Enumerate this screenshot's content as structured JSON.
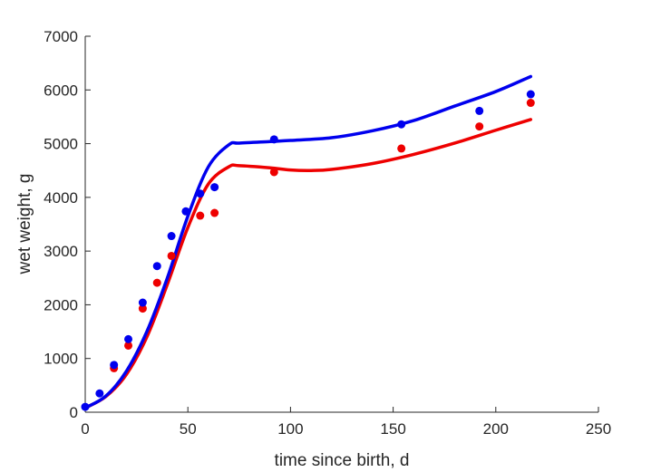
{
  "chart_data": {
    "type": "scatter",
    "title": "",
    "xlabel": "time since birth, d",
    "ylabel": "wet weight, g",
    "xlim": [
      0,
      250
    ],
    "ylim": [
      0,
      7000
    ],
    "xticks": [
      0,
      50,
      100,
      150,
      200,
      250
    ],
    "yticks": [
      0,
      1000,
      2000,
      3000,
      4000,
      5000,
      6000,
      7000
    ],
    "grid": false,
    "legend": "none",
    "series": [
      {
        "color": "#0000ee",
        "points_x": [
          0,
          7,
          14,
          21,
          28,
          35,
          42,
          49,
          56,
          63,
          92,
          154,
          192,
          217
        ],
        "points_y": [
          100,
          350,
          880,
          1360,
          2040,
          2720,
          3280,
          3740,
          4070,
          4190,
          5080,
          5360,
          5610,
          5920
        ],
        "curve_x": [
          0,
          10,
          20,
          30,
          40,
          50,
          60,
          70,
          75,
          90,
          100,
          120,
          140,
          160,
          180,
          200,
          217
        ],
        "curve_y": [
          80,
          300,
          760,
          1500,
          2500,
          3650,
          4570,
          4980,
          5010,
          5040,
          5060,
          5110,
          5240,
          5430,
          5700,
          5970,
          6250
        ]
      },
      {
        "color": "#ee0000",
        "points_x": [
          14,
          21,
          28,
          35,
          42,
          56,
          63,
          92,
          154,
          192,
          217
        ],
        "points_y": [
          820,
          1240,
          1930,
          2410,
          2910,
          3660,
          3710,
          4470,
          4910,
          5320,
          5760
        ],
        "curve_x": [
          0,
          10,
          20,
          30,
          40,
          50,
          60,
          70,
          75,
          90,
          100,
          110,
          120,
          140,
          160,
          180,
          200,
          217
        ],
        "curve_y": [
          80,
          290,
          700,
          1400,
          2380,
          3440,
          4250,
          4570,
          4590,
          4550,
          4510,
          4500,
          4520,
          4630,
          4800,
          5010,
          5250,
          5450
        ]
      }
    ]
  }
}
